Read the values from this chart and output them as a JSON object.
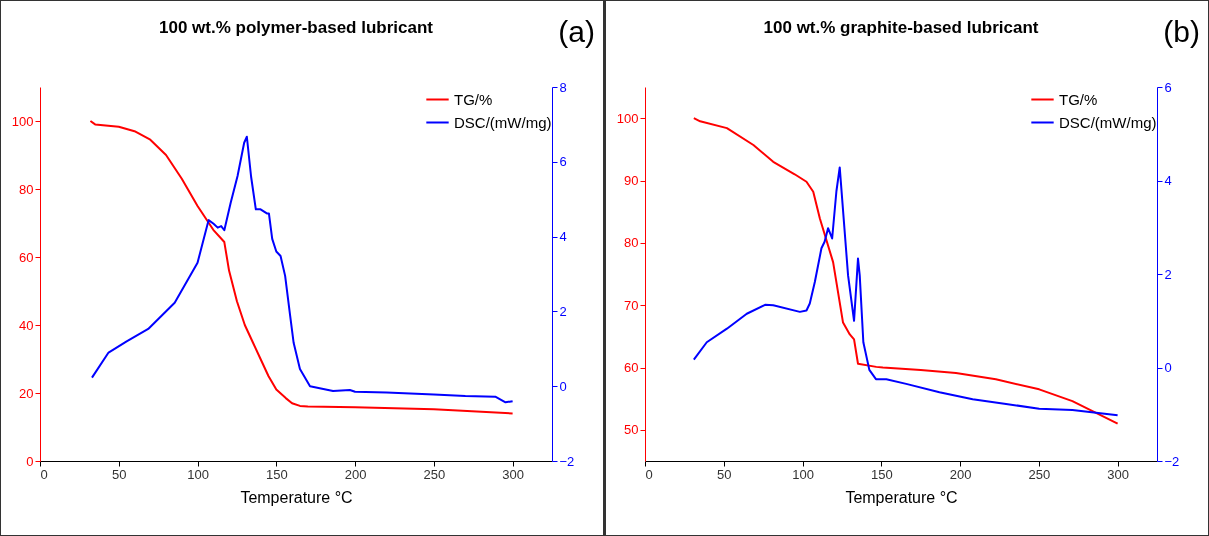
{
  "chart_data": [
    {
      "type": "line",
      "title": "100 wt.% polymer-based lubricant",
      "xlabel": "Temperature °C",
      "annotations": [
        "(a)"
      ],
      "legend": "top right",
      "grid": false,
      "xlim": [
        0,
        325
      ],
      "xticks": [
        0,
        50,
        100,
        150,
        200,
        250,
        300
      ],
      "ylim": [
        0,
        110
      ],
      "yticks": [
        0,
        20,
        40,
        60,
        80,
        100
      ],
      "y2lim": [
        -2,
        8
      ],
      "y2ticks": [
        -2,
        0,
        2,
        4,
        6,
        8
      ],
      "series": [
        {
          "name": "TG/%",
          "color": "#ff0000",
          "x": [
            32,
            35,
            50,
            60,
            70,
            80,
            90,
            100,
            110,
            117,
            120,
            125,
            130,
            135,
            140,
            145,
            150,
            156,
            160,
            165,
            170,
            200,
            250,
            300
          ],
          "values": [
            100,
            99,
            98.3,
            97,
            94.5,
            90,
            83,
            75,
            68,
            64.4,
            56,
            47,
            40,
            35,
            30,
            25,
            21,
            18.5,
            17,
            16.2,
            16,
            15.8,
            15.2,
            14
          ]
        },
        {
          "name": "DSC/(mW/mg)",
          "color": "#0000ff",
          "axis": "y2",
          "x": [
            33,
            43.5,
            55,
            68.7,
            85.5,
            100,
            107,
            110,
            112.8,
            115,
            117,
            121,
            125.4,
            129.6,
            131.3,
            134,
            137,
            140,
            144,
            145.3,
            147.4,
            150,
            152.7,
            155.6,
            158.8,
            161,
            165,
            171.4,
            186,
            196.7,
            200,
            220,
            250,
            270,
            289,
            295.5,
            300
          ],
          "values": [
            0.23,
            0.9,
            1.2,
            1.53,
            2.23,
            3.3,
            4.44,
            4.35,
            4.24,
            4.28,
            4.17,
            4.9,
            5.62,
            6.51,
            6.67,
            5.6,
            4.73,
            4.73,
            4.62,
            4.62,
            3.94,
            3.6,
            3.48,
            2.95,
            1.88,
            1.16,
            0.46,
            0,
            -0.13,
            -0.1,
            -0.15,
            -0.17,
            -0.22,
            -0.26,
            -0.28,
            -0.43,
            -0.4
          ]
        }
      ]
    },
    {
      "type": "line",
      "title": "100 wt.% graphite-based lubricant",
      "xlabel": "Temperature °C",
      "annotations": [
        "(b)"
      ],
      "legend": "top right",
      "grid": false,
      "xlim": [
        0,
        325
      ],
      "xticks": [
        0,
        50,
        100,
        150,
        200,
        250,
        300
      ],
      "ylim": [
        45,
        105
      ],
      "yticks": [
        50,
        60,
        70,
        80,
        90,
        100
      ],
      "y2lim": [
        -2,
        6
      ],
      "y2ticks": [
        -2,
        0,
        2,
        4,
        6
      ],
      "series": [
        {
          "name": "TG/%",
          "color": "#ff0000",
          "x": [
            31,
            35,
            52,
            68.8,
            81.4,
            95,
            102.5,
            106.8,
            111,
            119.4,
            125.7,
            130,
            132.7,
            135.2,
            146.8,
            151,
            175,
            197.4,
            222.7,
            250.2,
            271.3,
            300
          ],
          "values": [
            100,
            99.5,
            98.4,
            95.7,
            93,
            91,
            89.8,
            88.2,
            83.9,
            76.9,
            67.2,
            65.3,
            64.5,
            60.6,
            60.1,
            60,
            59.6,
            59.1,
            58.1,
            56.5,
            54.6,
            51
          ]
        },
        {
          "name": "DSC/(mW/mg)",
          "color": "#0000ff",
          "axis": "y2",
          "x": [
            31,
            39.2,
            52,
            64.6,
            76.2,
            81.4,
            98.3,
            102.5,
            104.6,
            107.8,
            112,
            114,
            116.2,
            118.8,
            121.5,
            123.6,
            128.9,
            132.7,
            135.2,
            136.3,
            138.6,
            142.4,
            146.6,
            153.2,
            165.8,
            186.9,
            208,
            229.2,
            250.2,
            271.3,
            300
          ],
          "values": [
            0.17,
            0.54,
            0.83,
            1.15,
            1.34,
            1.33,
            1.19,
            1.22,
            1.37,
            1.83,
            2.55,
            2.69,
            2.98,
            2.76,
            3.77,
            4.28,
            1.97,
            1,
            2.33,
            1.97,
            0.54,
            -0.05,
            -0.25,
            -0.25,
            -0.35,
            -0.53,
            -0.68,
            -0.78,
            -0.88,
            -0.91,
            -1.02
          ]
        }
      ]
    }
  ]
}
